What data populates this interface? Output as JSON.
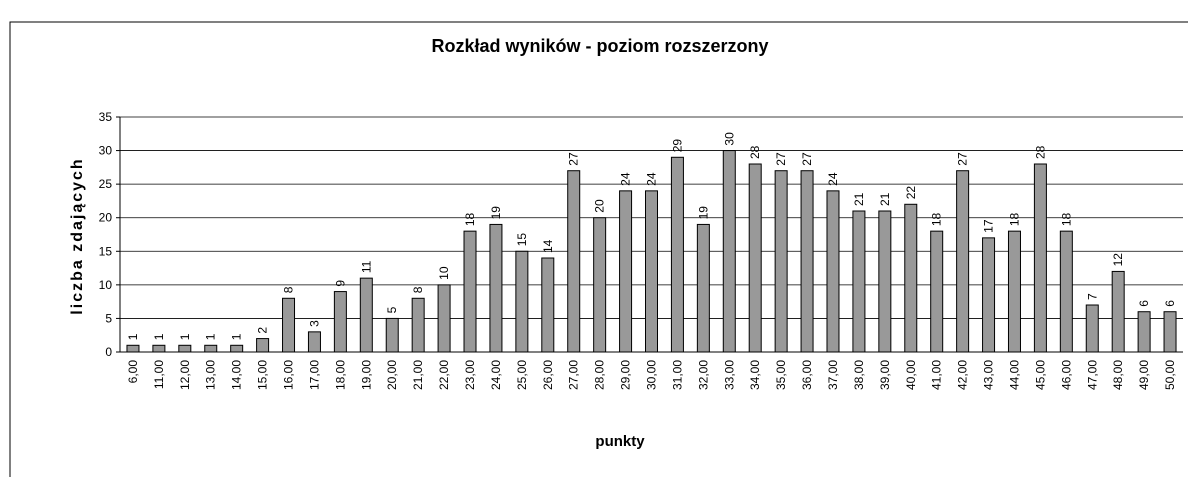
{
  "chart_data": {
    "type": "bar",
    "title": "Rozkład wyników - poziom  rozszerzony",
    "x_label": "punkty",
    "y_label": "liczba zdających",
    "categories": [
      "6,00",
      "11,00",
      "12,00",
      "13,00",
      "14,00",
      "15,00",
      "16,00",
      "17,00",
      "18,00",
      "19,00",
      "20,00",
      "21,00",
      "22,00",
      "23,00",
      "24,00",
      "25,00",
      "26,00",
      "27,00",
      "28,00",
      "29,00",
      "30,00",
      "31,00",
      "32,00",
      "33,00",
      "34,00",
      "35,00",
      "36,00",
      "37,00",
      "38,00",
      "39,00",
      "40,00",
      "41,00",
      "42,00",
      "43,00",
      "44,00",
      "45,00",
      "46,00",
      "47,00",
      "48,00",
      "49,00",
      "50,00"
    ],
    "values": [
      1,
      1,
      1,
      1,
      1,
      2,
      8,
      3,
      9,
      11,
      5,
      8,
      10,
      18,
      19,
      15,
      14,
      27,
      20,
      24,
      24,
      29,
      19,
      30,
      28,
      27,
      27,
      24,
      21,
      21,
      22,
      18,
      27,
      17,
      18,
      28,
      18,
      7,
      12,
      6,
      6
    ],
    "color": "#999999",
    "ylim": [
      0,
      35
    ],
    "yticks": [
      0,
      5,
      10,
      15,
      20,
      25,
      30,
      35
    ],
    "grid": true
  }
}
